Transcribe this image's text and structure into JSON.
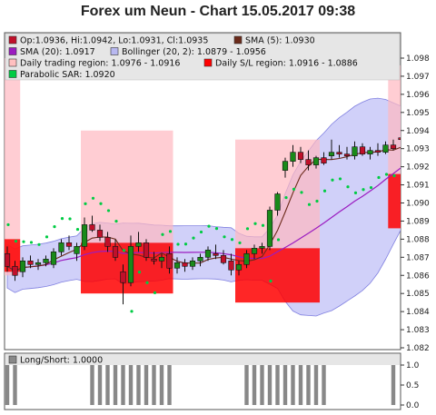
{
  "chart_data": {
    "type": "candlestick",
    "title": "Forex um Neun - Chart 15.05.2017 09:38",
    "legend": [
      {
        "label": "Op:1.0936, Hi:1.0942, Lo:1.0931, Cl:1.0935",
        "color": "#c0102a"
      },
      {
        "label": "SMA (5): 1.0930",
        "color": "#6b2a1a"
      },
      {
        "label": "SMA (20): 1.0917",
        "color": "#9b1cc0"
      },
      {
        "label": "Bollinger (20, 2): 1.0879 - 1.0956",
        "color": "#b8b8f0"
      },
      {
        "label": "Daily trading region: 1.0976 - 1.0916",
        "color": "#ffc0c0"
      },
      {
        "label": "Daily S/L region: 1.0916 - 1.0886",
        "color": "#ff0000"
      },
      {
        "label": "Parabolic SAR: 1.0920",
        "color": "#00cc44"
      }
    ],
    "price_axis": {
      "min": 1.082,
      "max": 1.0985,
      "ticks": [
        "1.082",
        "1.083",
        "1.084",
        "1.085",
        "1.086",
        "1.087",
        "1.088",
        "1.089",
        "1.090",
        "1.091",
        "1.092",
        "1.093",
        "1.094",
        "1.095",
        "1.096",
        "1.097",
        "1.098"
      ]
    },
    "candles": [
      [
        1.0872,
        1.0876,
        1.0862,
        1.0865
      ],
      [
        1.0865,
        1.0868,
        1.0857,
        1.086
      ],
      [
        1.0862,
        1.087,
        1.0859,
        1.0868
      ],
      [
        1.0868,
        1.0871,
        1.0864,
        1.0866
      ],
      [
        1.0866,
        1.0869,
        1.0863,
        1.0867
      ],
      [
        1.0867,
        1.0871,
        1.0865,
        1.0869
      ],
      [
        1.0866,
        1.0875,
        1.0864,
        1.0873
      ],
      [
        1.0873,
        1.088,
        1.0871,
        1.0878
      ],
      [
        1.0878,
        1.0882,
        1.0874,
        1.0876
      ],
      [
        1.0872,
        1.0878,
        1.0868,
        1.0876
      ],
      [
        1.0876,
        1.0892,
        1.0874,
        1.0888
      ],
      [
        1.0888,
        1.0893,
        1.0884,
        1.0885
      ],
      [
        1.0885,
        1.0888,
        1.0879,
        1.0881
      ],
      [
        1.0881,
        1.0884,
        1.0873,
        1.0876
      ],
      [
        1.0876,
        1.088,
        1.0868,
        1.087
      ],
      [
        1.0862,
        1.0866,
        1.0844,
        1.0856
      ],
      [
        1.0856,
        1.0882,
        1.0854,
        1.0876
      ],
      [
        1.0876,
        1.0884,
        1.0873,
        1.0878
      ],
      [
        1.0878,
        1.088,
        1.0868,
        1.087
      ],
      [
        1.0869,
        1.0873,
        1.0866,
        1.0868
      ],
      [
        1.0868,
        1.0872,
        1.0864,
        1.087
      ],
      [
        1.0872,
        1.0876,
        1.0861,
        1.0864
      ],
      [
        1.0864,
        1.087,
        1.0861,
        1.0867
      ],
      [
        1.0867,
        1.0869,
        1.0862,
        1.0865
      ],
      [
        1.0865,
        1.087,
        1.0863,
        1.0868
      ],
      [
        1.0868,
        1.0872,
        1.0865,
        1.087
      ],
      [
        1.087,
        1.0876,
        1.0868,
        1.0874
      ],
      [
        1.0872,
        1.0877,
        1.0869,
        1.0871
      ],
      [
        1.0871,
        1.0874,
        1.0866,
        1.0867
      ],
      [
        1.0868,
        1.0872,
        1.086,
        1.0863
      ],
      [
        1.0863,
        1.0868,
        1.086,
        1.0866
      ],
      [
        1.0866,
        1.0874,
        1.0864,
        1.0872
      ],
      [
        1.0872,
        1.0877,
        1.0869,
        1.0875
      ],
      [
        1.0875,
        1.0878,
        1.0872,
        1.0876
      ],
      [
        1.0876,
        1.0898,
        1.0874,
        1.0896
      ],
      [
        1.0896,
        1.0906,
        1.0893,
        1.0905
      ],
      [
        1.0918,
        1.0925,
        1.0914,
        1.0923
      ],
      [
        1.0923,
        1.0932,
        1.092,
        1.0928
      ],
      [
        1.0928,
        1.0931,
        1.0922,
        1.0924
      ],
      [
        1.0924,
        1.0929,
        1.0918,
        1.0921
      ],
      [
        1.0921,
        1.0926,
        1.0919,
        1.0925
      ],
      [
        1.0925,
        1.0928,
        1.0921,
        1.0922
      ],
      [
        1.0926,
        1.0935,
        1.0924,
        1.0928
      ],
      [
        1.0928,
        1.0932,
        1.0925,
        1.0927
      ],
      [
        1.0927,
        1.0931,
        1.0924,
        1.0926
      ],
      [
        1.0926,
        1.0934,
        1.0924,
        1.0931
      ],
      [
        1.0931,
        1.0933,
        1.0926,
        1.0927
      ],
      [
        1.0927,
        1.0931,
        1.0924,
        1.0929
      ],
      [
        1.0929,
        1.0933,
        1.0926,
        1.0928
      ],
      [
        1.0928,
        1.0934,
        1.0927,
        1.0932
      ],
      [
        1.0932,
        1.0935,
        1.0929,
        1.093
      ],
      [
        1.0936,
        1.0942,
        1.0931,
        1.0935
      ]
    ],
    "long_short": {
      "label": "Long/Short: 1.0000",
      "ticks": [
        "1.0",
        "0.5",
        "0.0"
      ]
    }
  }
}
